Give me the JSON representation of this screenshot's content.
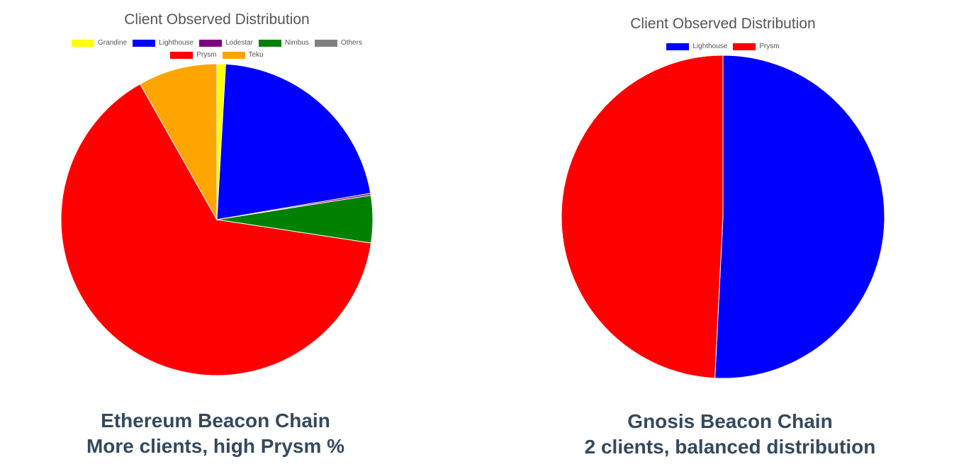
{
  "chart_data": [
    {
      "type": "pie",
      "title": "Client Observed Distribution",
      "legend_position": "top",
      "slices": [
        {
          "label": "Grandine",
          "value": 0.9,
          "color": "#ffff00"
        },
        {
          "label": "Lighthouse",
          "value": 21.4,
          "color": "#0000ff"
        },
        {
          "label": "Lodestar",
          "value": 0.2,
          "color": "#800080"
        },
        {
          "label": "Nimbus",
          "value": 4.9,
          "color": "#008000"
        },
        {
          "label": "Others",
          "value": 0,
          "color": "#808080"
        },
        {
          "label": "Prysm",
          "value": 64.4,
          "color": "#ff0000"
        },
        {
          "label": "Teku",
          "value": 8.2,
          "color": "#ffa500"
        }
      ],
      "caption_lines": [
        "Ethereum Beacon Chain",
        "More clients, high Prysm %"
      ]
    },
    {
      "type": "pie",
      "title": "Client Observed Distribution",
      "legend_position": "top",
      "slices": [
        {
          "label": "Lighthouse",
          "value": 50.8,
          "color": "#0000ff"
        },
        {
          "label": "Prysm",
          "value": 49.2,
          "color": "#ff0000"
        }
      ],
      "caption_lines": [
        "Gnosis Beacon Chain",
        "2 clients, balanced distribution"
      ]
    }
  ]
}
